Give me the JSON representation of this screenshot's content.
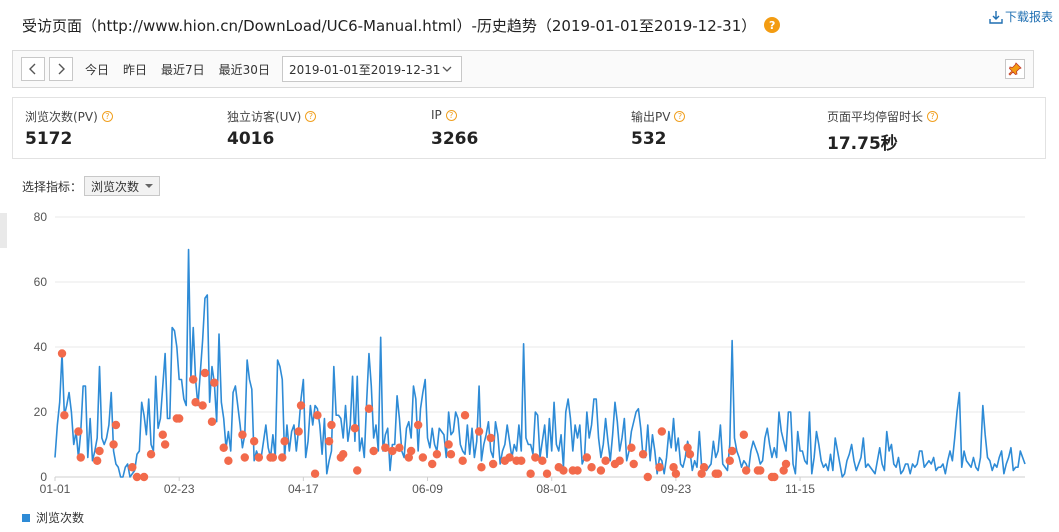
{
  "header": {
    "title": "受访页面（http://www.hion.cn/DownLoad/UC6-Manual.html）-历史趋势（2019-01-01至2019-12-31）",
    "help": "?",
    "download_label": "下载报表"
  },
  "toolbar": {
    "quick_ranges": [
      "今日",
      "昨日",
      "最近7日",
      "最近30日"
    ],
    "date_range": "2019-01-01至2019-12-31"
  },
  "metrics": [
    {
      "label": "浏览次数(PV)",
      "value": "5172"
    },
    {
      "label": "独立访客(UV)",
      "value": "4016"
    },
    {
      "label": "IP",
      "value": "3266"
    },
    {
      "label": "输出PV",
      "value": "532"
    },
    {
      "label": "页面平均停留时长",
      "value": "17.75秒"
    }
  ],
  "selector": {
    "label": "选择指标：",
    "value": "浏览次数"
  },
  "colors": {
    "line": "#2e8bd6",
    "marker": "#f26a4b",
    "grid": "#e8e8e8",
    "help_badge": "#f39c12"
  },
  "chart_data": {
    "type": "line",
    "ylim": [
      0,
      80
    ],
    "yticks": [
      0,
      20,
      40,
      60,
      80
    ],
    "x_tick_labels": [
      "01-01",
      "02-23",
      "04-17",
      "06-09",
      "08-01",
      "09-23",
      "11-15"
    ],
    "grid": true,
    "legend_position": "bottom-left",
    "series": [
      {
        "name": "浏览次数",
        "values": [
          6,
          16,
          23,
          38,
          19,
          22,
          26,
          20,
          10,
          14,
          6,
          14,
          28,
          28,
          6,
          18,
          5,
          8,
          12,
          34,
          12,
          10,
          12,
          16,
          26,
          8,
          4,
          3,
          0,
          0,
          3,
          4,
          0,
          1,
          2,
          7,
          8,
          23,
          19,
          13,
          24,
          10,
          8,
          31,
          15,
          18,
          28,
          38,
          18,
          18,
          46,
          45,
          40,
          30,
          30,
          24,
          22,
          70,
          30,
          46,
          30,
          22,
          32,
          42,
          55,
          56,
          23,
          34,
          29,
          17,
          44,
          23,
          18,
          9,
          14,
          8,
          26,
          28,
          22,
          16,
          9,
          13,
          36,
          30,
          27,
          5,
          8,
          6,
          6,
          11,
          16,
          9,
          6,
          13,
          6,
          36,
          34,
          30,
          6,
          16,
          8,
          14,
          16,
          8,
          15,
          24,
          30,
          6,
          11,
          22,
          16,
          22,
          21,
          16,
          7,
          18,
          1,
          5,
          8,
          34,
          19,
          19,
          18,
          12,
          22,
          11,
          16,
          31,
          11,
          31,
          8,
          12,
          6,
          23,
          38,
          28,
          12,
          16,
          8,
          43,
          8,
          13,
          15,
          2,
          10,
          10,
          25,
          18,
          8,
          6,
          15,
          17,
          12,
          28,
          24,
          8,
          21,
          26,
          30,
          12,
          9,
          15,
          10,
          8,
          15,
          14,
          13,
          6,
          20,
          13,
          14,
          20,
          18,
          10,
          8,
          7,
          16,
          7,
          15,
          6,
          11,
          28,
          5,
          10,
          13,
          17,
          8,
          6,
          17,
          13,
          4,
          8,
          10,
          16,
          11,
          6,
          10,
          8,
          16,
          8,
          41,
          12,
          10,
          10,
          7,
          20,
          19,
          6,
          11,
          16,
          6,
          18,
          8,
          23,
          10,
          8,
          13,
          3,
          20,
          24,
          18,
          8,
          16,
          12,
          16,
          4,
          6,
          20,
          12,
          16,
          24,
          24,
          12,
          6,
          10,
          18,
          11,
          5,
          13,
          23,
          17,
          8,
          12,
          18,
          5,
          8,
          14,
          17,
          20,
          21,
          15,
          6,
          6,
          16,
          5,
          13,
          8,
          1,
          6,
          5,
          1,
          6,
          14,
          9,
          18,
          8,
          12,
          4,
          3,
          6,
          11,
          8,
          2,
          5,
          3,
          14,
          3,
          4,
          2,
          3,
          4,
          11,
          6,
          8,
          16,
          4,
          3,
          2,
          10,
          42,
          12,
          8,
          6,
          3,
          5,
          4,
          2,
          8,
          11,
          9,
          7,
          4,
          5,
          12,
          15,
          10,
          6,
          9,
          6,
          20,
          14,
          11,
          8,
          20,
          20,
          4,
          1,
          14,
          8,
          8,
          5,
          4,
          20,
          1,
          6,
          14,
          10,
          5,
          3,
          4,
          2,
          7,
          2,
          12,
          8,
          4,
          0,
          1,
          5,
          7,
          10,
          5,
          2,
          4,
          6,
          12,
          3,
          4,
          3,
          2,
          1,
          5,
          9,
          4,
          2,
          14,
          8,
          10,
          4,
          3,
          6,
          1,
          2,
          4,
          4,
          1,
          4,
          3,
          4,
          8,
          8,
          3,
          4,
          5,
          4,
          6,
          2,
          3,
          3,
          4,
          1,
          5,
          8,
          5,
          12,
          20,
          26,
          3,
          8,
          5,
          4,
          3,
          6,
          3,
          2,
          6,
          22,
          13,
          6,
          5,
          2,
          4,
          3,
          6,
          8,
          1,
          4,
          6,
          9,
          2,
          3,
          3,
          8,
          6,
          4
        ]
      }
    ],
    "markers": [
      {
        "x": 3,
        "y": 38
      },
      {
        "x": 4,
        "y": 19
      },
      {
        "x": 10,
        "y": 14
      },
      {
        "x": 11,
        "y": 6
      },
      {
        "x": 18,
        "y": 5
      },
      {
        "x": 19,
        "y": 8
      },
      {
        "x": 25,
        "y": 10
      },
      {
        "x": 26,
        "y": 16
      },
      {
        "x": 33,
        "y": 3
      },
      {
        "x": 35,
        "y": 0
      },
      {
        "x": 38,
        "y": 0
      },
      {
        "x": 41,
        "y": 7
      },
      {
        "x": 46,
        "y": 13
      },
      {
        "x": 47,
        "y": 10
      },
      {
        "x": 52,
        "y": 18
      },
      {
        "x": 53,
        "y": 18
      },
      {
        "x": 59,
        "y": 30
      },
      {
        "x": 60,
        "y": 23
      },
      {
        "x": 63,
        "y": 22
      },
      {
        "x": 64,
        "y": 32
      },
      {
        "x": 67,
        "y": 17
      },
      {
        "x": 68,
        "y": 29
      },
      {
        "x": 72,
        "y": 9
      },
      {
        "x": 74,
        "y": 5
      },
      {
        "x": 80,
        "y": 13
      },
      {
        "x": 81,
        "y": 6
      },
      {
        "x": 85,
        "y": 11
      },
      {
        "x": 87,
        "y": 6
      },
      {
        "x": 92,
        "y": 6
      },
      {
        "x": 93,
        "y": 6
      },
      {
        "x": 97,
        "y": 6
      },
      {
        "x": 98,
        "y": 11
      },
      {
        "x": 104,
        "y": 14
      },
      {
        "x": 105,
        "y": 22
      },
      {
        "x": 111,
        "y": 1
      },
      {
        "x": 112,
        "y": 19
      },
      {
        "x": 117,
        "y": 11
      },
      {
        "x": 118,
        "y": 16
      },
      {
        "x": 122,
        "y": 6
      },
      {
        "x": 123,
        "y": 7
      },
      {
        "x": 128,
        "y": 15
      },
      {
        "x": 129,
        "y": 2
      },
      {
        "x": 134,
        "y": 21
      },
      {
        "x": 136,
        "y": 8
      },
      {
        "x": 141,
        "y": 9
      },
      {
        "x": 144,
        "y": 8
      },
      {
        "x": 147,
        "y": 9
      },
      {
        "x": 151,
        "y": 6
      },
      {
        "x": 152,
        "y": 8
      },
      {
        "x": 155,
        "y": 16
      },
      {
        "x": 157,
        "y": 6
      },
      {
        "x": 161,
        "y": 4
      },
      {
        "x": 163,
        "y": 7
      },
      {
        "x": 168,
        "y": 10
      },
      {
        "x": 169,
        "y": 7
      },
      {
        "x": 174,
        "y": 5
      },
      {
        "x": 175,
        "y": 19
      },
      {
        "x": 181,
        "y": 14
      },
      {
        "x": 182,
        "y": 3
      },
      {
        "x": 186,
        "y": 12
      },
      {
        "x": 187,
        "y": 4
      },
      {
        "x": 192,
        "y": 5
      },
      {
        "x": 194,
        "y": 6
      },
      {
        "x": 197,
        "y": 5
      },
      {
        "x": 199,
        "y": 5
      },
      {
        "x": 203,
        "y": 1
      },
      {
        "x": 205,
        "y": 6
      },
      {
        "x": 208,
        "y": 5
      },
      {
        "x": 210,
        "y": 1
      },
      {
        "x": 215,
        "y": 3
      },
      {
        "x": 217,
        "y": 2
      },
      {
        "x": 221,
        "y": 2
      },
      {
        "x": 223,
        "y": 2
      },
      {
        "x": 227,
        "y": 6
      },
      {
        "x": 229,
        "y": 3
      },
      {
        "x": 233,
        "y": 2
      },
      {
        "x": 235,
        "y": 5
      },
      {
        "x": 239,
        "y": 4
      },
      {
        "x": 241,
        "y": 5
      },
      {
        "x": 246,
        "y": 9
      },
      {
        "x": 247,
        "y": 4
      },
      {
        "x": 251,
        "y": 7
      },
      {
        "x": 253,
        "y": 0
      },
      {
        "x": 258,
        "y": 3
      },
      {
        "x": 259,
        "y": 14
      },
      {
        "x": 264,
        "y": 3
      },
      {
        "x": 265,
        "y": 1
      },
      {
        "x": 270,
        "y": 9
      },
      {
        "x": 271,
        "y": 7
      },
      {
        "x": 276,
        "y": 1
      },
      {
        "x": 277,
        "y": 3
      },
      {
        "x": 282,
        "y": 1
      },
      {
        "x": 283,
        "y": 1
      },
      {
        "x": 288,
        "y": 5
      },
      {
        "x": 289,
        "y": 8
      },
      {
        "x": 294,
        "y": 13
      },
      {
        "x": 295,
        "y": 2
      },
      {
        "x": 300,
        "y": 2
      },
      {
        "x": 301,
        "y": 2
      },
      {
        "x": 306,
        "y": 0
      },
      {
        "x": 307,
        "y": 0
      },
      {
        "x": 311,
        "y": 2
      },
      {
        "x": 312,
        "y": 4
      }
    ]
  },
  "legend": {
    "series_name": "浏览次数"
  }
}
